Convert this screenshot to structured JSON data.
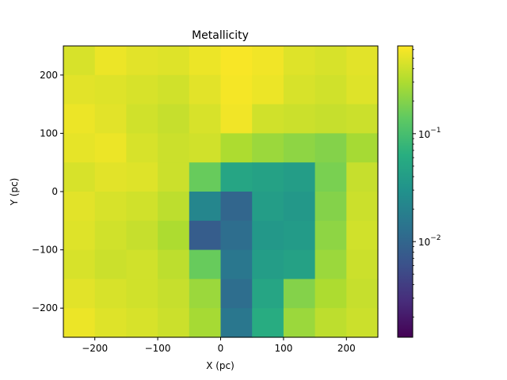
{
  "chart_data": {
    "type": "heatmap",
    "title": "Metallicity",
    "xlabel": "X (pc)",
    "ylabel": "Y (pc)",
    "xlim": [
      -250,
      250
    ],
    "ylim": [
      -250,
      250
    ],
    "x_ticks": [
      -200,
      -100,
      0,
      100,
      200
    ],
    "y_ticks": [
      -200,
      -100,
      0,
      100,
      200
    ],
    "x_tick_labels": [
      "−200",
      "−100",
      "0",
      "100",
      "200"
    ],
    "y_tick_labels": [
      "−200",
      "−100",
      "0",
      "100",
      "200"
    ],
    "colormap": "viridis",
    "colorbar": {
      "scale": "log",
      "vmin": 0.0013,
      "vmax": 0.65,
      "major_ticks": [
        0.01,
        0.1
      ],
      "major_tick_mantissa": [
        "10",
        "10"
      ],
      "major_tick_exponent": [
        "−2",
        "−1"
      ]
    },
    "grid": {
      "x_edges": [
        -250,
        -200,
        -150,
        -100,
        -50,
        0,
        50,
        100,
        150,
        200,
        250
      ],
      "y_edges": [
        -250,
        -200,
        -150,
        -100,
        -50,
        0,
        50,
        100,
        150,
        200,
        250
      ],
      "values_top_to_bottom": [
        [
          0.45,
          0.55,
          0.5,
          0.48,
          0.55,
          0.62,
          0.58,
          0.48,
          0.45,
          0.5
        ],
        [
          0.5,
          0.48,
          0.45,
          0.42,
          0.5,
          0.6,
          0.55,
          0.45,
          0.42,
          0.48
        ],
        [
          0.55,
          0.5,
          0.42,
          0.38,
          0.45,
          0.58,
          0.42,
          0.4,
          0.38,
          0.4
        ],
        [
          0.52,
          0.55,
          0.45,
          0.4,
          0.42,
          0.3,
          0.25,
          0.22,
          0.2,
          0.28
        ],
        [
          0.45,
          0.5,
          0.48,
          0.4,
          0.15,
          0.05,
          0.045,
          0.04,
          0.18,
          0.38
        ],
        [
          0.5,
          0.45,
          0.42,
          0.35,
          0.022,
          0.01,
          0.04,
          0.035,
          0.2,
          0.4
        ],
        [
          0.48,
          0.42,
          0.38,
          0.3,
          0.008,
          0.012,
          0.035,
          0.038,
          0.22,
          0.42
        ],
        [
          0.45,
          0.4,
          0.42,
          0.35,
          0.15,
          0.015,
          0.04,
          0.045,
          0.25,
          0.4
        ],
        [
          0.5,
          0.45,
          0.42,
          0.38,
          0.25,
          0.012,
          0.05,
          0.2,
          0.3,
          0.38
        ],
        [
          0.55,
          0.48,
          0.45,
          0.4,
          0.28,
          0.015,
          0.06,
          0.25,
          0.35,
          0.4
        ]
      ]
    }
  }
}
